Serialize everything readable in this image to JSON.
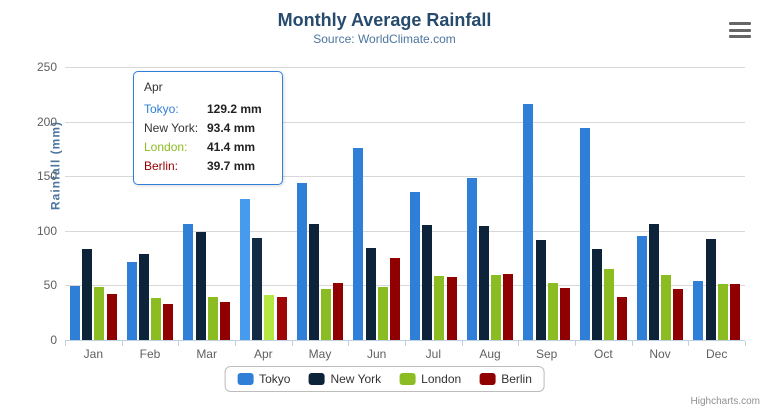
{
  "title": "Monthly Average Rainfall",
  "subtitle": "Source: WorldClimate.com",
  "y_axis_title": "Rainfall (mm)",
  "credits": "Highcharts.com",
  "export_menu_icon": "hamburger-icon",
  "colors": {
    "tokyo": "#2f7ed8",
    "new_york": "#0d233a",
    "london": "#8bbc21",
    "berlin": "#910000",
    "title_text": "#274b6d",
    "subtitle_text": "#4d759e",
    "axis_label_text": "#606060",
    "gridline": "#d8d8d8",
    "axis_line": "#c0d0e0"
  },
  "tooltip": {
    "header": "Apr",
    "rows": [
      {
        "label": "Tokyo:",
        "value": "129.2 mm",
        "color": "#2f7ed8"
      },
      {
        "label": "New York:",
        "value": "93.4 mm",
        "color": "#333333"
      },
      {
        "label": "London:",
        "value": "41.4 mm",
        "color": "#8bbc21"
      },
      {
        "label": "Berlin:",
        "value": "39.7 mm",
        "color": "#910000"
      }
    ]
  },
  "legend": {
    "items": [
      {
        "label": "Tokyo",
        "color": "#2f7ed8"
      },
      {
        "label": "New York",
        "color": "#0d233a"
      },
      {
        "label": "London",
        "color": "#8bbc21"
      },
      {
        "label": "Berlin",
        "color": "#910000"
      }
    ]
  },
  "chart_data": {
    "type": "bar",
    "title": "Monthly Average Rainfall",
    "subtitle": "Source: WorldClimate.com",
    "xlabel": "",
    "ylabel": "Rainfall (mm)",
    "ylim": [
      0,
      250
    ],
    "ytick_step": 50,
    "yticks": [
      0,
      50,
      100,
      150,
      200,
      250
    ],
    "grid": true,
    "legend_position": "bottom",
    "hovered_category_index": 3,
    "categories": [
      "Jan",
      "Feb",
      "Mar",
      "Apr",
      "May",
      "Jun",
      "Jul",
      "Aug",
      "Sep",
      "Oct",
      "Nov",
      "Dec"
    ],
    "series": [
      {
        "name": "Tokyo",
        "color": "#2f7ed8",
        "values": [
          49.9,
          71.5,
          106.4,
          129.2,
          144.0,
          176.0,
          135.6,
          148.5,
          216.4,
          194.1,
          95.6,
          54.4
        ]
      },
      {
        "name": "New York",
        "color": "#0d233a",
        "values": [
          83.6,
          78.8,
          98.5,
          93.4,
          106.0,
          84.5,
          105.0,
          104.3,
          91.2,
          83.5,
          106.6,
          92.3
        ]
      },
      {
        "name": "London",
        "color": "#8bbc21",
        "values": [
          48.9,
          38.8,
          39.3,
          41.4,
          47.0,
          48.3,
          59.0,
          59.6,
          52.4,
          65.2,
          59.3,
          51.2
        ]
      },
      {
        "name": "Berlin",
        "color": "#910000",
        "values": [
          42.4,
          33.2,
          34.5,
          39.7,
          52.6,
          75.5,
          57.4,
          60.4,
          47.6,
          39.1,
          46.8,
          51.1
        ]
      }
    ]
  }
}
